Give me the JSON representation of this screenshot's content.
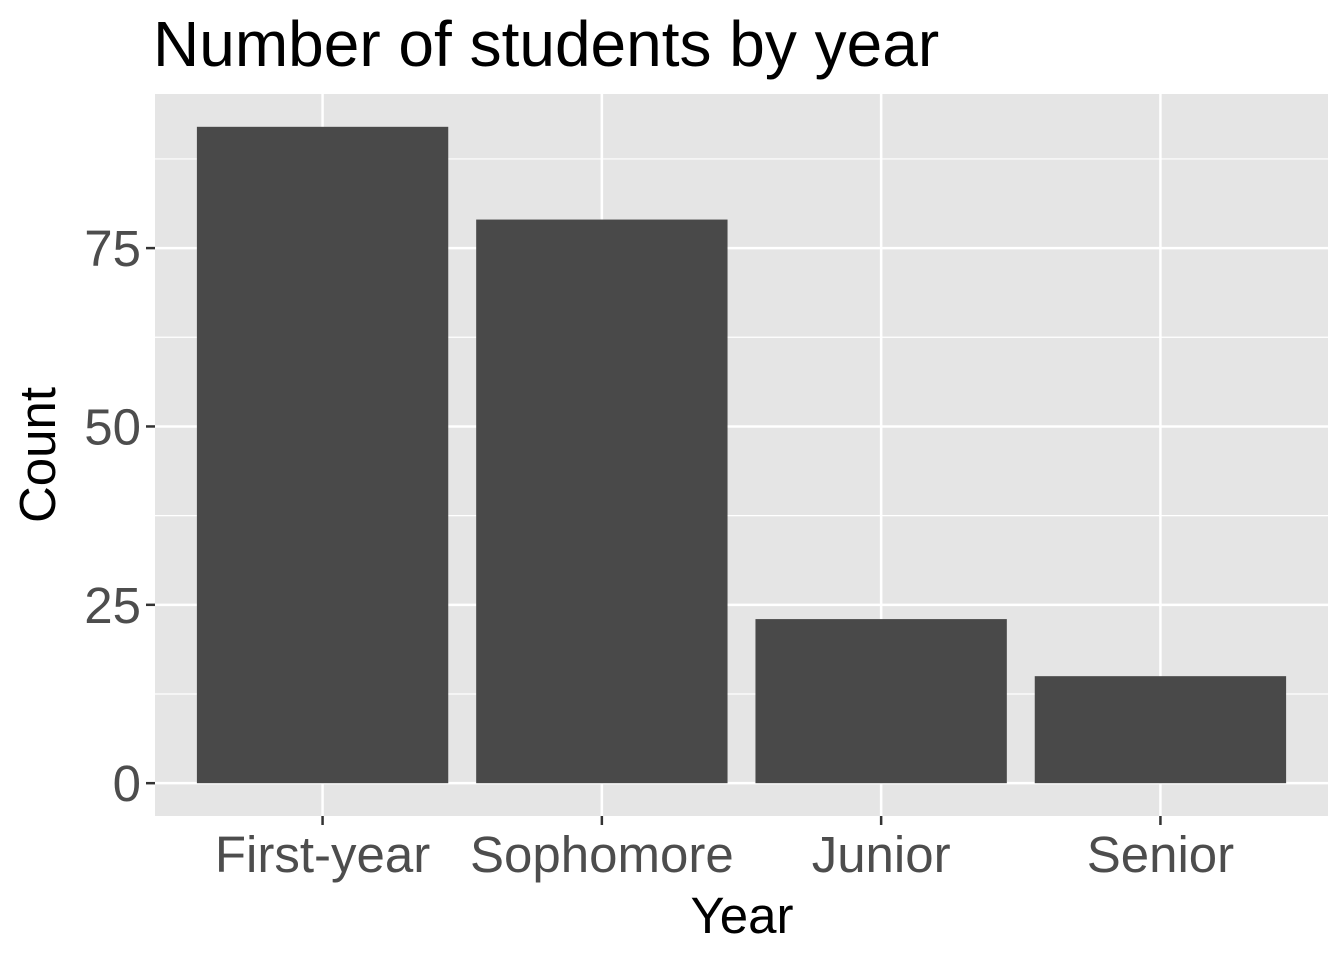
{
  "chart_data": {
    "type": "bar",
    "title": "Number of students by year",
    "xlabel": "Year",
    "ylabel": "Count",
    "categories": [
      "First-year",
      "Sophomore",
      "Junior",
      "Senior"
    ],
    "values": [
      92,
      79,
      23,
      15
    ],
    "ylim": [
      -4.6,
      96.6
    ],
    "yticks": [
      0,
      25,
      50,
      75
    ],
    "ytick_labels": [
      "0",
      "25",
      "50",
      "75"
    ],
    "grid": true,
    "legend": "none",
    "colors": {
      "bar": "#494949",
      "panel": "#e5e5e5",
      "grid": "#ffffff",
      "tick_text": "#4d4d4d",
      "tick_mark": "#333333"
    }
  }
}
